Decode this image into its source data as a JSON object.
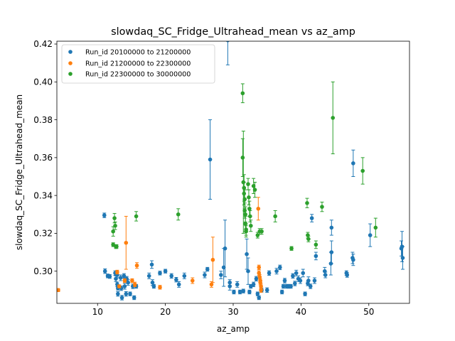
{
  "chart_data": {
    "type": "scatter",
    "title": "slowdaq_SC_Fridge_Ultrahead_mean vs az_amp",
    "xlabel": "az_amp",
    "ylabel": "slowdaq_SC_Fridge_Ultrahead_mean",
    "xlim": [
      4,
      56
    ],
    "ylim": [
      0.283,
      0.4215
    ],
    "xticks": [
      10,
      20,
      30,
      40,
      50
    ],
    "yticks": [
      0.3,
      0.32,
      0.34,
      0.36,
      0.38,
      0.4,
      0.42
    ],
    "xtick_labels": [
      "10",
      "20",
      "30",
      "40",
      "50"
    ],
    "ytick_labels": [
      "0.30",
      "0.32",
      "0.34",
      "0.36",
      "0.38",
      "0.40",
      "0.42"
    ],
    "grid": false,
    "legend_position": "top-left",
    "series": [
      {
        "name": "Run_id 20100000 to 21200000",
        "color": "#1f77b4",
        "points": [
          [
            11.0,
            0.3295,
            0.0012
          ],
          [
            11.1,
            0.3,
            0.0012
          ],
          [
            11.5,
            0.2975,
            0.001
          ],
          [
            11.8,
            0.2972,
            0.001
          ],
          [
            12.6,
            0.299,
            0.0012
          ],
          [
            12.7,
            0.296,
            0.0015
          ],
          [
            12.9,
            0.298,
            0.0015
          ],
          [
            12.9,
            0.293,
            0.0012
          ],
          [
            13.0,
            0.288,
            0.0012
          ],
          [
            13.0,
            0.291,
            0.001
          ],
          [
            13.4,
            0.2965,
            0.0015
          ],
          [
            13.5,
            0.291,
            0.0012
          ],
          [
            13.6,
            0.286,
            0.0012
          ],
          [
            13.7,
            0.28,
            0.002
          ],
          [
            13.9,
            0.2975,
            0.0012
          ],
          [
            14.0,
            0.292,
            0.0015
          ],
          [
            14.2,
            0.288,
            0.0012
          ],
          [
            14.3,
            0.296,
            0.0012
          ],
          [
            14.5,
            0.294,
            0.0015
          ],
          [
            14.8,
            0.288,
            0.001
          ],
          [
            15.2,
            0.292,
            0.0012
          ],
          [
            15.4,
            0.286,
            0.001
          ],
          [
            15.7,
            0.292,
            0.001
          ],
          [
            17.6,
            0.2975,
            0.0015
          ],
          [
            18.0,
            0.3035,
            0.002
          ],
          [
            18.1,
            0.294,
            0.0015
          ],
          [
            18.3,
            0.292,
            0.001
          ],
          [
            19.2,
            0.299,
            0.001
          ],
          [
            20.0,
            0.3,
            0.001
          ],
          [
            20.9,
            0.2975,
            0.0012
          ],
          [
            21.6,
            0.2955,
            0.0012
          ],
          [
            22.0,
            0.293,
            0.0015
          ],
          [
            22.8,
            0.2975,
            0.0015
          ],
          [
            25.8,
            0.298,
            0.0015
          ],
          [
            26.2,
            0.301,
            0.001
          ],
          [
            26.6,
            0.359,
            0.021
          ],
          [
            28.2,
            0.298,
            0.002
          ],
          [
            28.6,
            0.302,
            0.01
          ],
          [
            28.8,
            0.312,
            0.015
          ],
          [
            29.2,
            0.422,
            0.013
          ],
          [
            29.5,
            0.292,
            0.002
          ],
          [
            29.5,
            0.294,
            0.0015
          ],
          [
            30.1,
            0.289,
            0.001
          ],
          [
            30.6,
            0.293,
            0.0015
          ],
          [
            31.0,
            0.289,
            0.001
          ],
          [
            31.5,
            0.2895,
            0.001
          ],
          [
            32.0,
            0.309,
            0.008
          ],
          [
            32.2,
            0.3,
            0.007
          ],
          [
            32.4,
            0.289,
            0.001
          ],
          [
            32.6,
            0.292,
            0.001
          ],
          [
            33.0,
            0.293,
            0.0012
          ],
          [
            33.4,
            0.296,
            0.0012
          ],
          [
            33.6,
            0.288,
            0.001
          ],
          [
            33.8,
            0.286,
            0.001
          ],
          [
            34.2,
            0.29,
            0.001
          ],
          [
            35.0,
            0.29,
            0.0012
          ],
          [
            35.3,
            0.299,
            0.0012
          ],
          [
            36.4,
            0.3,
            0.0015
          ],
          [
            36.9,
            0.302,
            0.0012
          ],
          [
            37.2,
            0.289,
            0.001
          ],
          [
            37.4,
            0.292,
            0.001
          ],
          [
            37.6,
            0.295,
            0.0012
          ],
          [
            37.9,
            0.292,
            0.001
          ],
          [
            38.2,
            0.292,
            0.001
          ],
          [
            38.5,
            0.292,
            0.001
          ],
          [
            38.8,
            0.2975,
            0.0012
          ],
          [
            39.1,
            0.2935,
            0.0012
          ],
          [
            39.3,
            0.299,
            0.0015
          ],
          [
            39.6,
            0.296,
            0.0015
          ],
          [
            39.9,
            0.295,
            0.0015
          ],
          [
            40.3,
            0.299,
            0.002
          ],
          [
            40.6,
            0.288,
            0.001
          ],
          [
            41.0,
            0.2935,
            0.0012
          ],
          [
            41.1,
            0.295,
            0.002
          ],
          [
            41.4,
            0.292,
            0.0012
          ],
          [
            41.6,
            0.328,
            0.002
          ],
          [
            42.0,
            0.295,
            0.0015
          ],
          [
            42.2,
            0.308,
            0.002
          ],
          [
            43.5,
            0.3,
            0.002
          ],
          [
            43.6,
            0.298,
            0.0015
          ],
          [
            44.4,
            0.304,
            0.006
          ],
          [
            44.5,
            0.31,
            0.006
          ],
          [
            44.5,
            0.323,
            0.004
          ],
          [
            46.7,
            0.299,
            0.0012
          ],
          [
            46.8,
            0.298,
            0.0012
          ],
          [
            47.6,
            0.307,
            0.003
          ],
          [
            47.7,
            0.306,
            0.003
          ],
          [
            47.7,
            0.357,
            0.007
          ],
          [
            50.2,
            0.319,
            0.006
          ],
          [
            54.8,
            0.312,
            0.004
          ],
          [
            54.9,
            0.313,
            0.008
          ],
          [
            55.0,
            0.307,
            0.006
          ]
        ]
      },
      {
        "name": "Run_id 21200000 to 22300000",
        "color": "#ff7f0e",
        "points": [
          [
            4.2,
            0.29,
            0.0008
          ],
          [
            12.9,
            0.2995,
            0.001
          ],
          [
            13.2,
            0.292,
            0.0008
          ],
          [
            14.0,
            0.295,
            0.001
          ],
          [
            14.2,
            0.315,
            0.014
          ],
          [
            15.1,
            0.295,
            0.001
          ],
          [
            15.5,
            0.293,
            0.0012
          ],
          [
            15.8,
            0.303,
            0.0015
          ],
          [
            19.2,
            0.2915,
            0.001
          ],
          [
            24.0,
            0.295,
            0.0015
          ],
          [
            26.8,
            0.293,
            0.0015
          ],
          [
            27.0,
            0.306,
            0.012
          ],
          [
            33.7,
            0.333,
            0.006
          ],
          [
            33.8,
            0.302,
            0.0012
          ],
          [
            33.8,
            0.299,
            0.0012
          ],
          [
            33.9,
            0.297,
            0.0012
          ],
          [
            34.0,
            0.295,
            0.0012
          ],
          [
            34.0,
            0.294,
            0.0012
          ],
          [
            34.1,
            0.292,
            0.0012
          ],
          [
            34.1,
            0.29,
            0.0012
          ]
        ]
      },
      {
        "name": "Run_id 22300000 to 30000000",
        "color": "#2ca02c",
        "points": [
          [
            12.3,
            0.314,
            0.001
          ],
          [
            12.3,
            0.321,
            0.0025
          ],
          [
            12.5,
            0.328,
            0.0025
          ],
          [
            12.6,
            0.324,
            0.002
          ],
          [
            12.7,
            0.313,
            0.001
          ],
          [
            12.8,
            0.313,
            0.001
          ],
          [
            15.7,
            0.329,
            0.0025
          ],
          [
            21.9,
            0.33,
            0.003
          ],
          [
            31.4,
            0.394,
            0.005
          ],
          [
            31.4,
            0.36,
            0.01
          ],
          [
            31.5,
            0.347,
            0.027
          ],
          [
            31.6,
            0.344,
            0.007
          ],
          [
            31.6,
            0.341,
            0.006
          ],
          [
            31.7,
            0.338,
            0.005
          ],
          [
            31.7,
            0.332,
            0.004
          ],
          [
            31.8,
            0.33,
            0.004
          ],
          [
            31.8,
            0.325,
            0.004
          ],
          [
            31.9,
            0.322,
            0.003
          ],
          [
            31.9,
            0.321,
            0.003
          ],
          [
            32.2,
            0.346,
            0.003
          ],
          [
            32.3,
            0.339,
            0.004
          ],
          [
            32.4,
            0.333,
            0.004
          ],
          [
            32.5,
            0.329,
            0.003
          ],
          [
            32.6,
            0.324,
            0.003
          ],
          [
            33.0,
            0.345,
            0.004
          ],
          [
            33.2,
            0.343,
            0.004
          ],
          [
            33.6,
            0.319,
            0.0015
          ],
          [
            33.9,
            0.321,
            0.0015
          ],
          [
            34.2,
            0.321,
            0.0015
          ],
          [
            36.2,
            0.329,
            0.003
          ],
          [
            38.6,
            0.312,
            0.001
          ],
          [
            40.9,
            0.336,
            0.0025
          ],
          [
            41.0,
            0.319,
            0.0015
          ],
          [
            41.1,
            0.317,
            0.0015
          ],
          [
            42.2,
            0.314,
            0.002
          ],
          [
            43.1,
            0.334,
            0.0025
          ],
          [
            44.7,
            0.381,
            0.019
          ],
          [
            49.1,
            0.353,
            0.007
          ],
          [
            51.0,
            0.323,
            0.005
          ]
        ]
      }
    ]
  }
}
